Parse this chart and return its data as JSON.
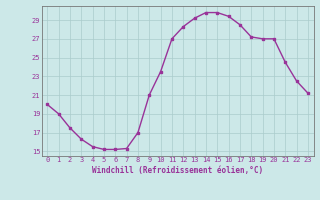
{
  "x": [
    0,
    1,
    2,
    3,
    4,
    5,
    6,
    7,
    8,
    9,
    10,
    11,
    12,
    13,
    14,
    15,
    16,
    17,
    18,
    19,
    20,
    21,
    22,
    23
  ],
  "y": [
    20.0,
    19.0,
    17.5,
    16.3,
    15.5,
    15.2,
    15.2,
    15.3,
    17.0,
    21.0,
    23.5,
    27.0,
    28.3,
    29.2,
    29.8,
    29.8,
    29.4,
    28.5,
    27.2,
    27.0,
    27.0,
    24.5,
    22.5,
    21.2
  ],
  "line_color": "#993399",
  "marker": "s",
  "markersize": 1.8,
  "linewidth": 1.0,
  "xlabel": "Windchill (Refroidissement éolien,°C)",
  "xlabel_fontsize": 5.5,
  "ylabel_ticks": [
    15,
    17,
    19,
    21,
    23,
    25,
    27,
    29
  ],
  "xtick_labels": [
    "0",
    "1",
    "2",
    "3",
    "4",
    "5",
    "6",
    "7",
    "8",
    "9",
    "10",
    "11",
    "12",
    "13",
    "14",
    "15",
    "16",
    "17",
    "18",
    "19",
    "20",
    "21",
    "22",
    "23"
  ],
  "xlim": [
    -0.5,
    23.5
  ],
  "ylim": [
    14.5,
    30.5
  ],
  "bg_color": "#cce8e8",
  "grid_color": "#aacccc",
  "tick_color": "#993399",
  "tick_fontsize": 5.0
}
